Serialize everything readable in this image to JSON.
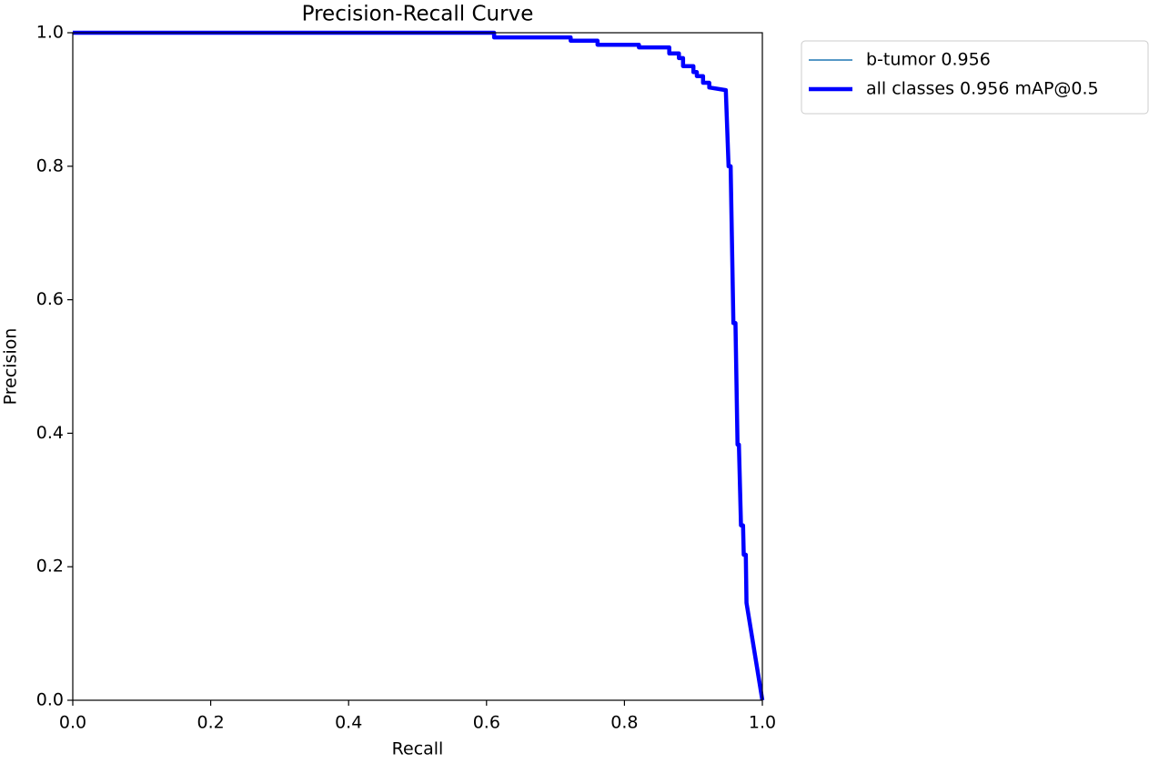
{
  "chart_data": {
    "type": "line",
    "title": "Precision-Recall Curve",
    "x_label": "Recall",
    "y_label": "Precision",
    "x": [
      0,
      0.611,
      0.611,
      0.722,
      0.722,
      0.761,
      0.761,
      0.821,
      0.821,
      0.865,
      0.865,
      0.879,
      0.879,
      0.885,
      0.885,
      0.9,
      0.9,
      0.905,
      0.905,
      0.914,
      0.914,
      0.923,
      0.923,
      0.947,
      0.951,
      0.954,
      0.958,
      0.961,
      0.964,
      0.966,
      0.969,
      0.972,
      0.973,
      0.976,
      0.977,
      1.0
    ],
    "series": [
      {
        "name": "b-tumor 0.956",
        "color": "#1f77b4",
        "linewidth": 1.5,
        "values": [
          1,
          1,
          0.993,
          0.993,
          0.988,
          0.988,
          0.982,
          0.982,
          0.978,
          0.978,
          0.969,
          0.969,
          0.962,
          0.962,
          0.95,
          0.95,
          0.941,
          0.941,
          0.935,
          0.935,
          0.925,
          0.925,
          0.918,
          0.914,
          0.8,
          0.8,
          0.565,
          0.565,
          0.383,
          0.383,
          0.262,
          0.262,
          0.218,
          0.218,
          0.146,
          0
        ]
      },
      {
        "name": "all classes 0.956 mAP@0.5",
        "color": "#0000ff",
        "linewidth": 4.5,
        "values": [
          1,
          1,
          0.993,
          0.993,
          0.988,
          0.988,
          0.982,
          0.982,
          0.978,
          0.978,
          0.969,
          0.969,
          0.962,
          0.962,
          0.95,
          0.95,
          0.941,
          0.941,
          0.935,
          0.935,
          0.925,
          0.925,
          0.918,
          0.914,
          0.8,
          0.8,
          0.565,
          0.565,
          0.383,
          0.383,
          0.262,
          0.262,
          0.218,
          0.218,
          0.146,
          0
        ]
      }
    ],
    "xlim": [
      0,
      1
    ],
    "ylim": [
      0,
      1
    ],
    "xticks": [
      {
        "value": 0,
        "label": "0.0"
      },
      0.2,
      0.4,
      0.6,
      0.8,
      {
        "value": 1,
        "label": "1.0"
      }
    ],
    "yticks": [
      {
        "value": 0,
        "label": "0.0"
      },
      0.2,
      0.4,
      0.6,
      0.8,
      {
        "value": 1,
        "label": "1.0"
      }
    ],
    "grid": false,
    "legend": "right"
  }
}
